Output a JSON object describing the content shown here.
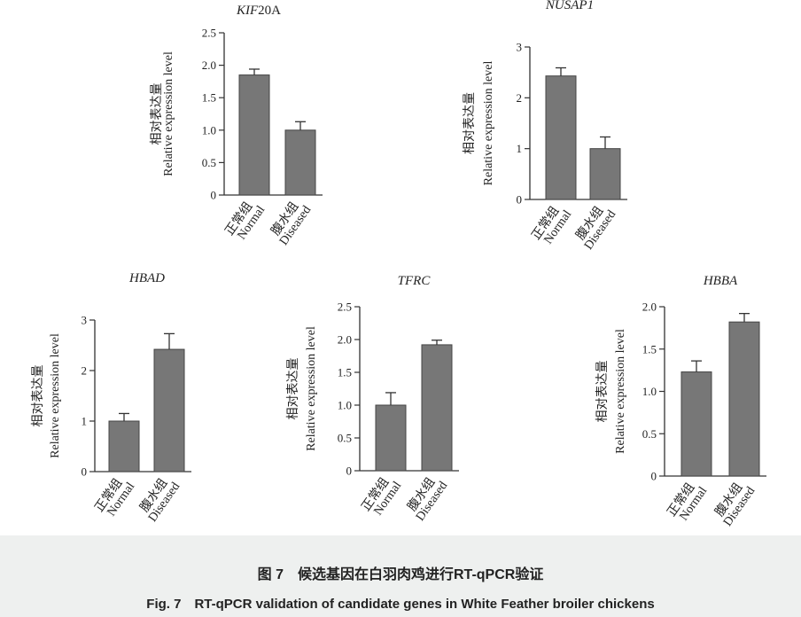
{
  "figure": {
    "caption_cn": "图 7　候选基因在白羽肉鸡进行RT-qPCR验证",
    "caption_en": "Fig. 7　RT-qPCR validation of candidate genes in White Feather broiler chickens"
  },
  "colors": {
    "bar": "#777777",
    "axis": "#333333",
    "caption_bg": "#eef0ef"
  },
  "chart_data": [
    {
      "type": "bar",
      "title": "KIF20A",
      "italic_part": "KIF",
      "ylabel_cn": "相对表达量",
      "ylabel": "Relative expression level",
      "categories": [
        {
          "cn": "正常组",
          "en": "Normal"
        },
        {
          "cn": "腹水组",
          "en": "Diseased"
        }
      ],
      "values": [
        1.85,
        1.0
      ],
      "errors": [
        0.09,
        0.13
      ],
      "ylim": [
        0,
        2.5
      ],
      "yticks": [
        "0",
        "0.5",
        "1.0",
        "1.5",
        "2.0",
        "2.5"
      ]
    },
    {
      "type": "bar",
      "title": "NUSAP1",
      "italic_part": "NUSAP1",
      "ylabel_cn": "相对表达量",
      "ylabel": "Relative expression level",
      "categories": [
        {
          "cn": "正常组",
          "en": "Normal"
        },
        {
          "cn": "腹水组",
          "en": "Diseased"
        }
      ],
      "values": [
        2.43,
        1.0
      ],
      "errors": [
        0.16,
        0.23
      ],
      "ylim": [
        0,
        3
      ],
      "yticks": [
        "0",
        "1",
        "2",
        "3"
      ]
    },
    {
      "type": "bar",
      "title": "HBAD",
      "italic_part": "HBAD",
      "ylabel_cn": "相对表达量",
      "ylabel": "Relative expression level",
      "categories": [
        {
          "cn": "正常组",
          "en": "Normal"
        },
        {
          "cn": "腹水组",
          "en": "Diseased"
        }
      ],
      "values": [
        1.0,
        2.42
      ],
      "errors": [
        0.15,
        0.31
      ],
      "ylim": [
        0,
        3
      ],
      "yticks": [
        "0",
        "1",
        "2",
        "3"
      ]
    },
    {
      "type": "bar",
      "title": "TFRC",
      "italic_part": "TFRC",
      "ylabel_cn": "相对表达量",
      "ylabel": "Relative expression level",
      "categories": [
        {
          "cn": "正常组",
          "en": "Normal"
        },
        {
          "cn": "腹水组",
          "en": "Diseased"
        }
      ],
      "values": [
        1.0,
        1.92
      ],
      "errors": [
        0.19,
        0.07
      ],
      "ylim": [
        0,
        2.5
      ],
      "yticks": [
        "0",
        "0.5",
        "1.0",
        "1.5",
        "2.0",
        "2.5"
      ]
    },
    {
      "type": "bar",
      "title": "HBBA",
      "italic_part": "HBBA",
      "ylabel_cn": "相对表达量",
      "ylabel": "Relative expression level",
      "categories": [
        {
          "cn": "正常组",
          "en": "Normal"
        },
        {
          "cn": "腹水组",
          "en": "Diseased"
        }
      ],
      "values": [
        1.23,
        1.82
      ],
      "errors": [
        0.13,
        0.1
      ],
      "ylim": [
        0,
        2.0
      ],
      "yticks": [
        "0",
        "0.5",
        "1.0",
        "1.5",
        "2.0"
      ]
    }
  ]
}
